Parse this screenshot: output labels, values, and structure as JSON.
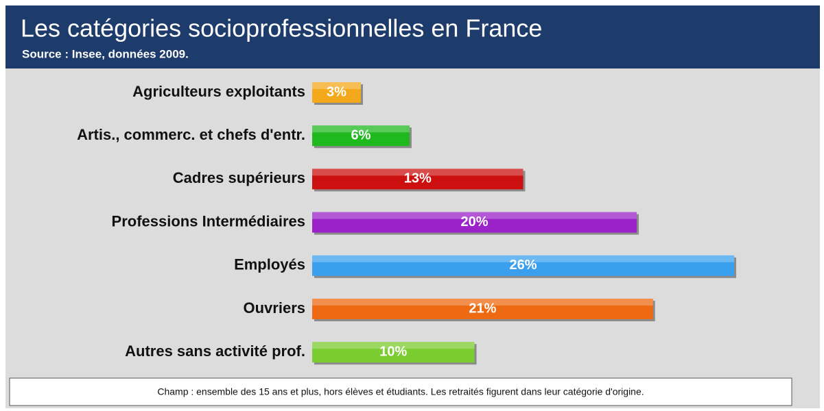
{
  "chart_data": {
    "type": "bar",
    "orientation": "horizontal",
    "title": "Les catégories socioprofessionnelles en France",
    "subtitle": "Source : Insee, données 2009.",
    "note": "Champ : ensemble des 15 ans et plus, hors élèves et étudiants. Les retraités figurent dans leur catégorie d'origine.",
    "categories": [
      "Agriculteurs exploitants",
      "Artis., commerc. et chefs d'entr.",
      "Cadres supérieurs",
      "Professions Intermédiaires",
      "Employés",
      "Ouvriers",
      "Autres sans activité prof."
    ],
    "values": [
      3,
      6,
      13,
      20,
      26,
      21,
      10
    ],
    "value_labels": [
      "3%",
      "6%",
      "13%",
      "20%",
      "26%",
      "21%",
      "10%"
    ],
    "colors": [
      "#f4a81c",
      "#1fb81f",
      "#cc1010",
      "#9a22c8",
      "#3aa0ee",
      "#ee6a12",
      "#7acc30"
    ]
  }
}
